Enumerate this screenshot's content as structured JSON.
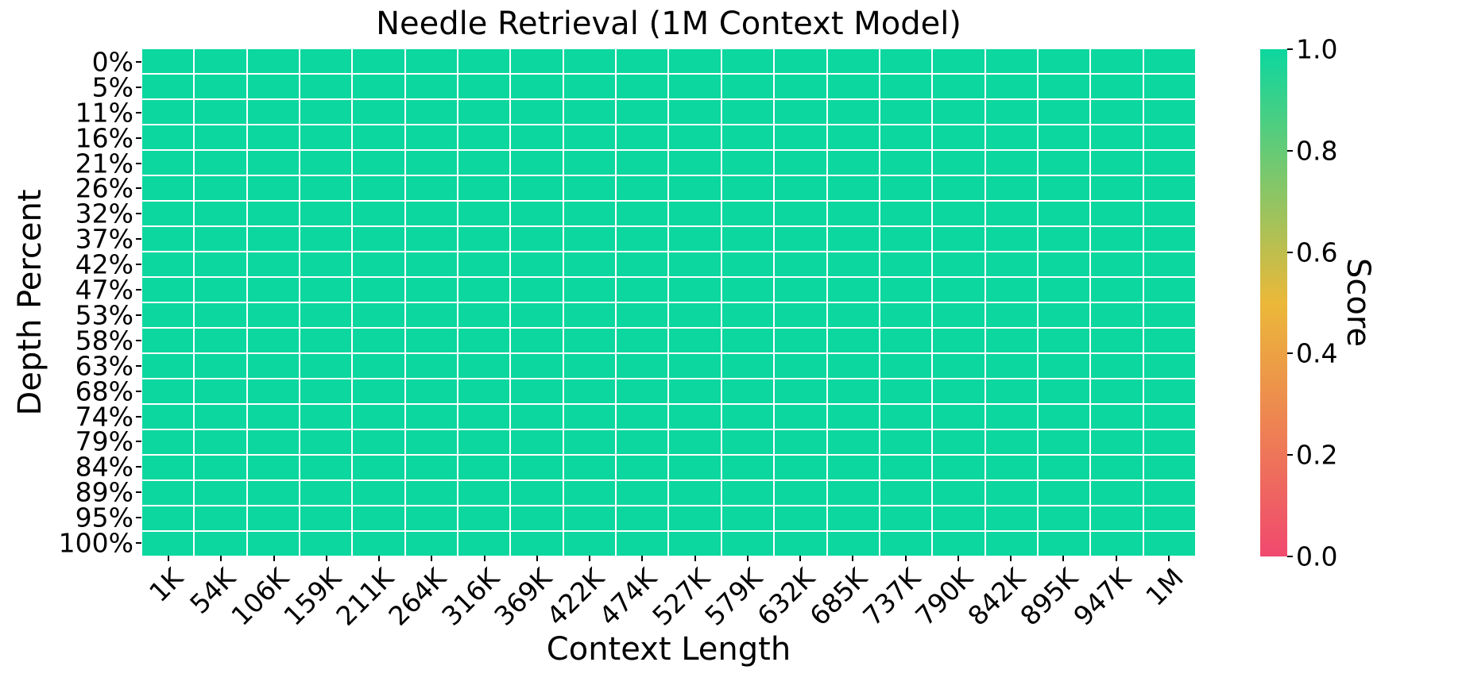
{
  "page": {
    "background": "#ffffff",
    "text_color": "#000000"
  },
  "chart_data": {
    "type": "heatmap",
    "title": "Needle Retrieval (1M Context Model)",
    "xlabel": "Context Length",
    "ylabel": "Depth Percent",
    "x_categories": [
      "1K",
      "54K",
      "106K",
      "159K",
      "211K",
      "264K",
      "316K",
      "369K",
      "422K",
      "474K",
      "527K",
      "579K",
      "632K",
      "685K",
      "737K",
      "790K",
      "842K",
      "895K",
      "947K",
      "1M"
    ],
    "y_categories": [
      "0%",
      "5%",
      "11%",
      "16%",
      "21%",
      "26%",
      "32%",
      "37%",
      "42%",
      "47%",
      "53%",
      "58%",
      "63%",
      "68%",
      "74%",
      "79%",
      "84%",
      "89%",
      "95%",
      "100%"
    ],
    "values": [
      [
        1.0,
        1.0,
        1.0,
        1.0,
        1.0,
        1.0,
        1.0,
        1.0,
        1.0,
        1.0,
        1.0,
        1.0,
        1.0,
        1.0,
        1.0,
        1.0,
        1.0,
        1.0,
        1.0,
        1.0
      ],
      [
        1.0,
        1.0,
        1.0,
        1.0,
        1.0,
        1.0,
        1.0,
        1.0,
        1.0,
        1.0,
        1.0,
        1.0,
        1.0,
        1.0,
        1.0,
        1.0,
        1.0,
        1.0,
        1.0,
        1.0
      ],
      [
        1.0,
        1.0,
        1.0,
        1.0,
        1.0,
        1.0,
        1.0,
        1.0,
        1.0,
        1.0,
        1.0,
        1.0,
        1.0,
        1.0,
        1.0,
        1.0,
        1.0,
        1.0,
        1.0,
        1.0
      ],
      [
        1.0,
        1.0,
        1.0,
        1.0,
        1.0,
        1.0,
        1.0,
        1.0,
        1.0,
        1.0,
        1.0,
        1.0,
        1.0,
        1.0,
        1.0,
        1.0,
        1.0,
        1.0,
        1.0,
        1.0
      ],
      [
        1.0,
        1.0,
        1.0,
        1.0,
        1.0,
        1.0,
        1.0,
        1.0,
        1.0,
        1.0,
        1.0,
        1.0,
        1.0,
        1.0,
        1.0,
        1.0,
        1.0,
        1.0,
        1.0,
        1.0
      ],
      [
        1.0,
        1.0,
        1.0,
        1.0,
        1.0,
        1.0,
        1.0,
        1.0,
        1.0,
        1.0,
        1.0,
        1.0,
        1.0,
        1.0,
        1.0,
        1.0,
        1.0,
        1.0,
        1.0,
        1.0
      ],
      [
        1.0,
        1.0,
        1.0,
        1.0,
        1.0,
        1.0,
        1.0,
        1.0,
        1.0,
        1.0,
        1.0,
        1.0,
        1.0,
        1.0,
        1.0,
        1.0,
        1.0,
        1.0,
        1.0,
        1.0
      ],
      [
        1.0,
        1.0,
        1.0,
        1.0,
        1.0,
        1.0,
        1.0,
        1.0,
        1.0,
        1.0,
        1.0,
        1.0,
        1.0,
        1.0,
        1.0,
        1.0,
        1.0,
        1.0,
        1.0,
        1.0
      ],
      [
        1.0,
        1.0,
        1.0,
        1.0,
        1.0,
        1.0,
        1.0,
        1.0,
        1.0,
        1.0,
        1.0,
        1.0,
        1.0,
        1.0,
        1.0,
        1.0,
        1.0,
        1.0,
        1.0,
        1.0
      ],
      [
        1.0,
        1.0,
        1.0,
        1.0,
        1.0,
        1.0,
        1.0,
        1.0,
        1.0,
        1.0,
        1.0,
        1.0,
        1.0,
        1.0,
        1.0,
        1.0,
        1.0,
        1.0,
        1.0,
        1.0
      ],
      [
        1.0,
        1.0,
        1.0,
        1.0,
        1.0,
        1.0,
        1.0,
        1.0,
        1.0,
        1.0,
        1.0,
        1.0,
        1.0,
        1.0,
        1.0,
        1.0,
        1.0,
        1.0,
        1.0,
        1.0
      ],
      [
        1.0,
        1.0,
        1.0,
        1.0,
        1.0,
        1.0,
        1.0,
        1.0,
        1.0,
        1.0,
        1.0,
        1.0,
        1.0,
        1.0,
        1.0,
        1.0,
        1.0,
        1.0,
        1.0,
        1.0
      ],
      [
        1.0,
        1.0,
        1.0,
        1.0,
        1.0,
        1.0,
        1.0,
        1.0,
        1.0,
        1.0,
        1.0,
        1.0,
        1.0,
        1.0,
        1.0,
        1.0,
        1.0,
        1.0,
        1.0,
        1.0
      ],
      [
        1.0,
        1.0,
        1.0,
        1.0,
        1.0,
        1.0,
        1.0,
        1.0,
        1.0,
        1.0,
        1.0,
        1.0,
        1.0,
        1.0,
        1.0,
        1.0,
        1.0,
        1.0,
        1.0,
        1.0
      ],
      [
        1.0,
        1.0,
        1.0,
        1.0,
        1.0,
        1.0,
        1.0,
        1.0,
        1.0,
        1.0,
        1.0,
        1.0,
        1.0,
        1.0,
        1.0,
        1.0,
        1.0,
        1.0,
        1.0,
        1.0
      ],
      [
        1.0,
        1.0,
        1.0,
        1.0,
        1.0,
        1.0,
        1.0,
        1.0,
        1.0,
        1.0,
        1.0,
        1.0,
        1.0,
        1.0,
        1.0,
        1.0,
        1.0,
        1.0,
        1.0,
        1.0
      ],
      [
        1.0,
        1.0,
        1.0,
        1.0,
        1.0,
        1.0,
        1.0,
        1.0,
        1.0,
        1.0,
        1.0,
        1.0,
        1.0,
        1.0,
        1.0,
        1.0,
        1.0,
        1.0,
        1.0,
        1.0
      ],
      [
        1.0,
        1.0,
        1.0,
        1.0,
        1.0,
        1.0,
        1.0,
        1.0,
        1.0,
        1.0,
        1.0,
        1.0,
        1.0,
        1.0,
        1.0,
        1.0,
        1.0,
        1.0,
        1.0,
        1.0
      ],
      [
        1.0,
        1.0,
        1.0,
        1.0,
        1.0,
        1.0,
        1.0,
        1.0,
        1.0,
        1.0,
        1.0,
        1.0,
        1.0,
        1.0,
        1.0,
        1.0,
        1.0,
        1.0,
        1.0,
        1.0
      ],
      [
        1.0,
        1.0,
        1.0,
        1.0,
        1.0,
        1.0,
        1.0,
        1.0,
        1.0,
        1.0,
        1.0,
        1.0,
        1.0,
        1.0,
        1.0,
        1.0,
        1.0,
        1.0,
        1.0,
        1.0
      ]
    ],
    "vmin": 0.0,
    "vmax": 1.0,
    "grid": true,
    "grid_color": "#ffffff",
    "cell_color_at_max": "#0CD79F",
    "colorbar": {
      "label": "Score",
      "tick_labels": [
        "1.0",
        "0.8",
        "0.6",
        "0.4",
        "0.2",
        "0.0"
      ],
      "tick_values": [
        1.0,
        0.8,
        0.6,
        0.4,
        0.2,
        0.0
      ],
      "colormap_stops": [
        "#F0496E",
        "#EBB839",
        "#0CD79F"
      ]
    }
  }
}
